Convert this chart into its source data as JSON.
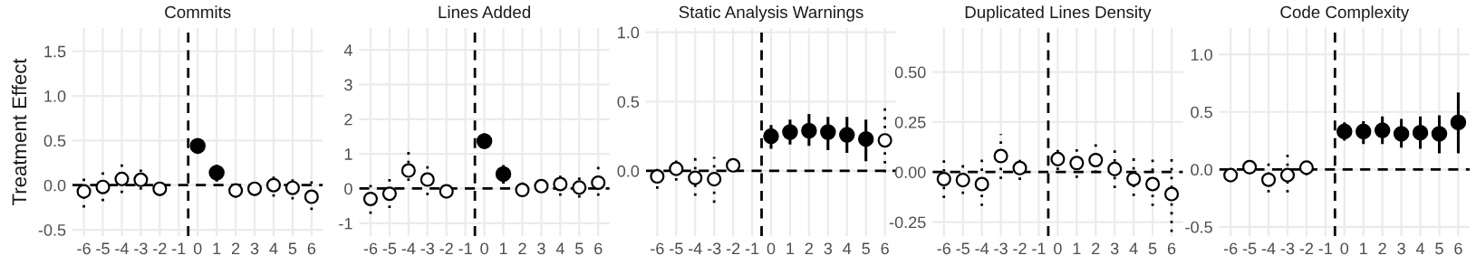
{
  "chart_data": [
    {
      "type": "scatter",
      "title": "Commits",
      "ylabel": "Treatment Effect",
      "xlim": [
        -6.6,
        6.6
      ],
      "xticks": [
        -6,
        -5,
        -4,
        -3,
        -2,
        -1,
        0,
        1,
        2,
        3,
        4,
        5,
        6
      ],
      "ylim": [
        -0.57,
        1.76
      ],
      "yticks": [
        -0.5,
        {
          "value": 0,
          "label": "0.0"
        },
        0.5,
        {
          "value": 1,
          "label": "1.0"
        },
        1.5
      ],
      "grid": true,
      "marker": "circle",
      "ref_lines": [
        {
          "axis": "y",
          "value": 0,
          "line_style": "dashed",
          "color": "#000000"
        },
        {
          "axis": "x",
          "value": -0.5,
          "line_style": "dashed",
          "color": "#000000"
        }
      ],
      "series": [
        {
          "color": "#000000",
          "line_style": "dotted",
          "x": [
            -6,
            -5,
            -4,
            -3,
            -2,
            2,
            3,
            4,
            5,
            6
          ],
          "values": [
            -0.07,
            -0.02,
            0.07,
            0.06,
            -0.04,
            -0.06,
            -0.04,
            0.0,
            -0.03,
            -0.13
          ],
          "errors": [
            [
              -0.25,
              0.09
            ],
            [
              -0.18,
              0.15
            ],
            [
              -0.09,
              0.25
            ],
            [
              -0.05,
              0.22
            ],
            [
              -0.12,
              0.05
            ],
            [
              -0.14,
              0.04
            ],
            [
              -0.12,
              0.06
            ],
            [
              -0.13,
              0.12
            ],
            [
              -0.16,
              0.1
            ],
            [
              -0.28,
              0.06
            ]
          ]
        },
        {
          "color": "#000000",
          "line_style": "solid",
          "x": [
            0,
            1
          ],
          "values": [
            0.44,
            0.14
          ],
          "errors": [
            [
              0.35,
              0.52
            ],
            [
              0.04,
              0.23
            ]
          ]
        }
      ]
    },
    {
      "type": "scatter",
      "title": "Lines Added",
      "xlim": [
        -6.6,
        6.6
      ],
      "xticks": [
        -6,
        -5,
        -4,
        -3,
        -2,
        -1,
        0,
        1,
        2,
        3,
        4,
        5,
        6
      ],
      "ylim": [
        -1.37,
        4.63
      ],
      "yticks": [
        -1,
        0,
        1,
        2,
        3,
        4
      ],
      "grid": true,
      "marker": "circle",
      "ref_lines": [
        {
          "axis": "y",
          "value": 0,
          "line_style": "dashed",
          "color": "#000000"
        },
        {
          "axis": "x",
          "value": -0.5,
          "line_style": "dashed",
          "color": "#000000"
        }
      ],
      "series": [
        {
          "color": "#000000",
          "line_style": "dotted",
          "x": [
            -6,
            -5,
            -4,
            -3,
            -2,
            2,
            3,
            4,
            5,
            6
          ],
          "values": [
            -0.3,
            -0.15,
            0.52,
            0.26,
            -0.08,
            -0.04,
            0.07,
            0.13,
            0.03,
            0.17
          ],
          "errors": [
            [
              -0.73,
              0.17
            ],
            [
              -0.56,
              0.35
            ],
            [
              0.22,
              1.11
            ],
            [
              -0.19,
              0.7
            ],
            [
              -0.28,
              0.18
            ],
            [
              -0.15,
              0.24
            ],
            [
              -0.09,
              0.37
            ],
            [
              -0.21,
              0.46
            ],
            [
              -0.26,
              0.42
            ],
            [
              -0.21,
              0.7
            ]
          ]
        },
        {
          "color": "#000000",
          "line_style": "solid",
          "x": [
            0,
            1
          ],
          "values": [
            1.37,
            0.42
          ],
          "errors": [
            [
              1.15,
              1.59
            ],
            [
              0.14,
              0.68
            ]
          ]
        }
      ]
    },
    {
      "type": "scatter",
      "title": "Static Analysis Warnings",
      "xlim": [
        -6.6,
        6.6
      ],
      "xticks": [
        -6,
        -5,
        -4,
        -3,
        -2,
        -1,
        0,
        1,
        2,
        3,
        4,
        5,
        6
      ],
      "ylim": [
        -0.47,
        1.03
      ],
      "yticks": [
        {
          "value": 0,
          "label": "0.0"
        },
        0.5,
        {
          "value": 1,
          "label": "1.0"
        }
      ],
      "grid": true,
      "marker": "circle",
      "ref_lines": [
        {
          "axis": "y",
          "value": 0,
          "line_style": "dashed",
          "color": "#000000"
        },
        {
          "axis": "x",
          "value": -0.5,
          "line_style": "dashed",
          "color": "#000000"
        }
      ],
      "series": [
        {
          "color": "#000000",
          "line_style": "dotted",
          "x": [
            -6,
            -5,
            -4,
            -3,
            -2,
            6
          ],
          "values": [
            -0.04,
            0.015,
            -0.05,
            -0.06,
            0.04,
            0.22
          ],
          "errors": [
            [
              -0.13,
              0.04
            ],
            [
              -0.07,
              0.1
            ],
            [
              -0.18,
              0.11
            ],
            [
              -0.23,
              0.1
            ],
            [
              0.01,
              0.11
            ],
            [
              -0.01,
              0.46
            ]
          ]
        },
        {
          "color": "#000000",
          "line_style": "solid",
          "x": [
            0,
            1,
            2,
            3,
            4,
            5
          ],
          "values": [
            0.25,
            0.28,
            0.29,
            0.28,
            0.26,
            0.23
          ],
          "errors": [
            [
              0.16,
              0.33
            ],
            [
              0.19,
              0.37
            ],
            [
              0.18,
              0.41
            ],
            [
              0.15,
              0.39
            ],
            [
              0.13,
              0.39
            ],
            [
              0.07,
              0.37
            ]
          ]
        }
      ]
    },
    {
      "type": "scatter",
      "title": "Duplicated Lines Density",
      "xlim": [
        -6.6,
        6.6
      ],
      "xticks": [
        -6,
        -5,
        -4,
        -3,
        -2,
        -1,
        0,
        1,
        2,
        3,
        4,
        5,
        6
      ],
      "ylim": [
        -0.32,
        0.72
      ],
      "yticks": [
        -0.25,
        {
          "value": 0,
          "label": "0.00"
        },
        0.25,
        {
          "value": 0.5,
          "label": "0.50"
        }
      ],
      "grid": true,
      "marker": "circle",
      "ref_lines": [
        {
          "axis": "y",
          "value": 0,
          "line_style": "dashed",
          "color": "#000000"
        },
        {
          "axis": "x",
          "value": -0.5,
          "line_style": "dashed",
          "color": "#000000"
        }
      ],
      "series": [
        {
          "color": "#000000",
          "line_style": "dotted",
          "x": [
            -6,
            -5,
            -4,
            -3,
            -2,
            0,
            1,
            2,
            3,
            4,
            5,
            6
          ],
          "values": [
            -0.035,
            -0.04,
            -0.06,
            0.08,
            0.02,
            0.065,
            0.045,
            0.06,
            0.015,
            -0.035,
            -0.06,
            -0.11
          ],
          "errors": [
            [
              -0.13,
              0.06
            ],
            [
              -0.11,
              0.05
            ],
            [
              -0.17,
              0.07
            ],
            [
              -0.035,
              0.19
            ],
            [
              -0.04,
              0.07
            ],
            [
              0.01,
              0.13
            ],
            [
              -0.03,
              0.125
            ],
            [
              -0.005,
              0.155
            ],
            [
              -0.08,
              0.12
            ],
            [
              -0.12,
              0.08
            ],
            [
              -0.17,
              0.07
            ],
            [
              -0.3,
              0.085
            ]
          ]
        }
      ]
    },
    {
      "type": "scatter",
      "title": "Code Complexity",
      "xlim": [
        -6.6,
        6.6
      ],
      "xticks": [
        -6,
        -5,
        -4,
        -3,
        -2,
        -1,
        0,
        1,
        2,
        3,
        4,
        5,
        6
      ],
      "ylim": [
        -0.58,
        1.23
      ],
      "yticks": [
        -0.5,
        {
          "value": 0,
          "label": "0.0"
        },
        0.5,
        {
          "value": 1,
          "label": "1.0"
        }
      ],
      "grid": true,
      "marker": "circle",
      "ref_lines": [
        {
          "axis": "y",
          "value": 0,
          "line_style": "dashed",
          "color": "#000000"
        },
        {
          "axis": "x",
          "value": -0.5,
          "line_style": "dashed",
          "color": "#000000"
        }
      ],
      "series": [
        {
          "color": "#000000",
          "line_style": "dotted",
          "x": [
            -6,
            -5,
            -4,
            -3,
            -2
          ],
          "values": [
            -0.05,
            0.02,
            -0.09,
            -0.05,
            0.015
          ],
          "errors": [
            [
              -0.1,
              0.04
            ],
            [
              -0.04,
              0.1
            ],
            [
              -0.2,
              0.07
            ],
            [
              -0.2,
              0.14
            ],
            [
              -0.05,
              0.09
            ]
          ]
        },
        {
          "color": "#000000",
          "line_style": "solid",
          "x": [
            0,
            1,
            2,
            3,
            4,
            5,
            6
          ],
          "values": [
            0.33,
            0.33,
            0.34,
            0.31,
            0.32,
            0.31,
            0.41
          ],
          "errors": [
            [
              0.25,
              0.41
            ],
            [
              0.22,
              0.42
            ],
            [
              0.22,
              0.46
            ],
            [
              0.19,
              0.44
            ],
            [
              0.18,
              0.46
            ],
            [
              0.14,
              0.47
            ],
            [
              0.14,
              0.67
            ]
          ]
        }
      ]
    }
  ]
}
